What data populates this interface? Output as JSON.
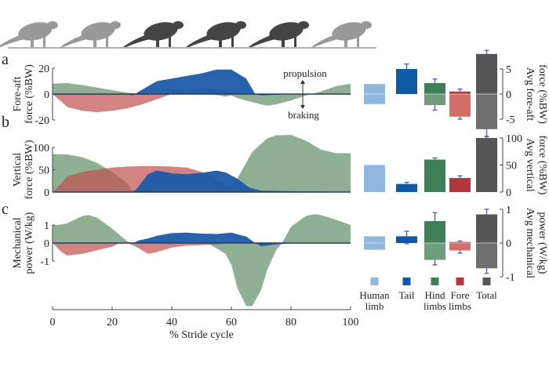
{
  "panel_letters": [
    "a",
    "b",
    "c"
  ],
  "colors": {
    "hind": "#5f8f66",
    "fore": "#c0504d",
    "tail": "#1b5aa6",
    "human": "#8fb7e0",
    "total": "#5a5a5a",
    "axis": "#444444",
    "error": "#6a6aa8"
  },
  "annotations": {
    "propulsion": "propulsion",
    "braking": "braking"
  },
  "legend": [
    {
      "key": "human",
      "label1": "Human",
      "label2": "limb"
    },
    {
      "key": "tail",
      "label1": "Tail",
      "label2": ""
    },
    {
      "key": "hind",
      "label1": "Hind",
      "label2": "limbs"
    },
    {
      "key": "fore",
      "label1": "Fore",
      "label2": "limbs"
    },
    {
      "key": "total",
      "label1": "Total",
      "label2": ""
    }
  ],
  "chart_data": [
    {
      "type": "area",
      "panel": "a",
      "ylabel": [
        "Fore-aft",
        "force (%BW)"
      ],
      "xlabel": "% Stride cycle",
      "xlim": [
        0,
        100
      ],
      "ylim": [
        -20,
        20
      ],
      "yticks": [
        -20,
        0,
        20
      ],
      "series": [
        {
          "key": "hind",
          "x": [
            0,
            5,
            10,
            15,
            20,
            25,
            30,
            53,
            56,
            58,
            60,
            62,
            65,
            70,
            72,
            75,
            80,
            85,
            90,
            95,
            100
          ],
          "y": [
            8,
            8.5,
            7,
            5,
            3,
            1,
            0,
            0,
            -1,
            -2,
            -1,
            -3,
            -5,
            -8,
            -9,
            -8,
            -5,
            -1,
            2,
            6,
            8
          ]
        },
        {
          "key": "fore",
          "x": [
            0,
            3,
            5,
            10,
            15,
            20,
            25,
            30,
            35,
            40,
            45,
            50,
            55,
            60,
            65,
            100
          ],
          "y": [
            0,
            -6,
            -10,
            -13,
            -14,
            -13,
            -11,
            -8,
            -4,
            0,
            3,
            5,
            4,
            1,
            0,
            0
          ]
        },
        {
          "key": "tail",
          "x": [
            0,
            25,
            27,
            29,
            35,
            40,
            45,
            50,
            55,
            60,
            65,
            68,
            70,
            75,
            80,
            100
          ],
          "y": [
            0,
            0,
            -1,
            2,
            10,
            12,
            14,
            16,
            19,
            19,
            12,
            0,
            -1,
            -0.5,
            0,
            0
          ]
        }
      ]
    },
    {
      "type": "area",
      "panel": "b",
      "ylabel": [
        "Vertical",
        "force (%BW)"
      ],
      "xlim": [
        0,
        100
      ],
      "ylim": [
        0,
        130
      ],
      "yticks": [
        0,
        50,
        100
      ],
      "series": [
        {
          "key": "hind",
          "x": [
            0,
            5,
            10,
            15,
            20,
            25,
            27,
            58,
            62,
            67,
            72,
            75,
            80,
            85,
            90,
            95,
            100
          ],
          "y": [
            85,
            84,
            78,
            65,
            45,
            20,
            0,
            0,
            30,
            90,
            120,
            127,
            128,
            115,
            95,
            87,
            87
          ]
        },
        {
          "key": "fore",
          "x": [
            0,
            3,
            5,
            10,
            15,
            20,
            25,
            30,
            35,
            40,
            45,
            50,
            55,
            60,
            62,
            100
          ],
          "y": [
            0,
            20,
            35,
            45,
            50,
            55,
            57,
            58,
            58,
            57,
            55,
            45,
            30,
            10,
            0,
            0
          ]
        },
        {
          "key": "tail",
          "x": [
            0,
            26,
            28,
            32,
            35,
            40,
            45,
            50,
            55,
            58,
            62,
            66,
            70,
            80,
            90,
            100
          ],
          "y": [
            0,
            0,
            5,
            40,
            48,
            42,
            40,
            43,
            48,
            44,
            30,
            10,
            3,
            2,
            1,
            0
          ]
        }
      ]
    },
    {
      "type": "area",
      "panel": "c",
      "ylabel": [
        "Mechanical",
        "power (W/kg)"
      ],
      "xlim": [
        0,
        100
      ],
      "ylim": [
        -3.6,
        1.6
      ],
      "yticks": [
        -1,
        0,
        1
      ],
      "xticks": [
        0,
        20,
        40,
        60,
        80,
        100
      ],
      "series": [
        {
          "key": "hind",
          "x": [
            0,
            2,
            5,
            10,
            12,
            15,
            20,
            25,
            27,
            52,
            55,
            58,
            60,
            62,
            65,
            67,
            70,
            72,
            75,
            77,
            80,
            85,
            88,
            90,
            95,
            100
          ],
          "y": [
            1,
            1,
            1.1,
            1.5,
            1.55,
            1.4,
            0.8,
            0.1,
            0,
            0,
            -0.3,
            -0.6,
            -1.2,
            -2.5,
            -3.5,
            -3.5,
            -2.6,
            -1.5,
            -0.4,
            0,
            0.9,
            1.5,
            1.6,
            1.55,
            1.3,
            1.0
          ]
        },
        {
          "key": "fore",
          "x": [
            0,
            3,
            5,
            10,
            15,
            20,
            22,
            25,
            28,
            32,
            35,
            40,
            45,
            50,
            55,
            60,
            100
          ],
          "y": [
            0,
            -0.5,
            -0.7,
            -0.6,
            -0.4,
            -0.2,
            -0.05,
            0,
            -0.2,
            -0.6,
            -0.5,
            -0.25,
            -0.15,
            -0.12,
            -0.08,
            0,
            0
          ]
        },
        {
          "key": "tail",
          "x": [
            0,
            27,
            29,
            32,
            35,
            40,
            45,
            50,
            55,
            60,
            65,
            68,
            70,
            75,
            80,
            100
          ],
          "y": [
            0,
            0,
            0.15,
            0.25,
            0.4,
            0.55,
            0.58,
            0.52,
            0.5,
            0.58,
            0.35,
            0,
            -0.18,
            -0.08,
            -0.02,
            0
          ]
        }
      ]
    },
    {
      "type": "bar",
      "panel": "a",
      "ylabel": [
        "Avg fore-aft",
        "force (%BW)"
      ],
      "ylim": [
        -5,
        8
      ],
      "yticks": [
        -5,
        0,
        5
      ],
      "categories": [
        "human",
        "tail",
        "hind",
        "fore",
        "total"
      ],
      "positive": [
        2,
        5,
        2.2,
        0.5,
        8
      ],
      "negative": [
        -2,
        0,
        -2.2,
        -4.5,
        -7
      ],
      "err_high": [
        null,
        6,
        3,
        1,
        8.7
      ],
      "err_low": [
        null,
        null,
        -3.2,
        -5,
        -8.5
      ]
    },
    {
      "type": "bar",
      "panel": "b",
      "ylabel": [
        "Avg vertical",
        "force (%BW)"
      ],
      "ylim": [
        0,
        100
      ],
      "yticks": [
        0,
        50,
        100
      ],
      "categories": [
        "human",
        "tail",
        "hind",
        "fore",
        "total"
      ],
      "positive": [
        50,
        15,
        60,
        26,
        100
      ],
      "negative": [
        0,
        0,
        0,
        0,
        0
      ],
      "err_high": [
        null,
        18,
        63,
        30,
        103
      ],
      "err_low": [
        null,
        null,
        null,
        null,
        null
      ]
    },
    {
      "type": "bar",
      "panel": "c",
      "ylabel": [
        "Avg mechanical",
        "power (W/kg)"
      ],
      "ylim": [
        -1,
        1
      ],
      "yticks": [
        -1,
        0,
        1
      ],
      "categories": [
        "human",
        "tail",
        "hind",
        "fore",
        "total"
      ],
      "positive": [
        0.2,
        0.2,
        0.65,
        0.03,
        0.85
      ],
      "negative": [
        -0.2,
        0,
        -0.5,
        -0.22,
        -0.75
      ],
      "err_high": [
        null,
        0.35,
        0.9,
        0.06,
        1
      ],
      "err_low": [
        null,
        -0.02,
        -0.65,
        -0.3,
        -0.9
      ]
    }
  ]
}
